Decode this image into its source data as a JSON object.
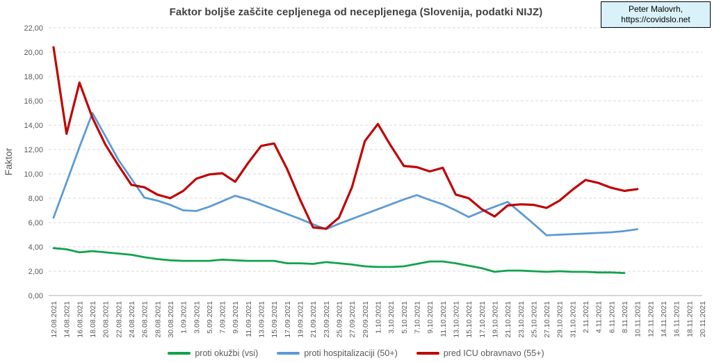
{
  "chart": {
    "title": "Faktor boljše zaščite cepljenega od necepljenega (Slovenija, podatki NIJZ)",
    "ylabel": "Faktor",
    "title_color": "#404040",
    "axis_text_color": "#595959",
    "grid_color": "#D9D9D9",
    "axis_line_color": "#BFBFBF"
  },
  "credit": {
    "line1": "Peter Malovrh,",
    "line2": "https://covidslo.net",
    "bg_color": "#D9F1F8",
    "border_color": "#000000"
  },
  "chart_data": {
    "type": "line",
    "title": "Faktor boljše zaščite cepljenega od necepljenega (Slovenija, podatki NIJZ)",
    "xlabel": "",
    "ylabel": "Faktor",
    "ylim": [
      0,
      22
    ],
    "ytick_step": 2,
    "ytick_format": "decimal-comma-2",
    "grid": "horizontal-dashed",
    "legend_position": "bottom",
    "x": [
      "12.08.2021",
      "14.08.2021",
      "16.08.2021",
      "18.08.2021",
      "20.08.2021",
      "22.08.2021",
      "24.08.2021",
      "26.08.2021",
      "28.08.2021",
      "30.08.2021",
      "1.09.2021",
      "3.09.2021",
      "5.09.2021",
      "7.09.2021",
      "9.09.2021",
      "11.09.2021",
      "13.09.2021",
      "15.09.2021",
      "17.09.2021",
      "19.09.2021",
      "21.09.2021",
      "23.09.2021",
      "25.09.2021",
      "27.09.2021",
      "29.09.2021",
      "1.10.2021",
      "3.10.2021",
      "5.10.2021",
      "7.10.2021",
      "9.10.2021",
      "11.10.2021",
      "13.10.2021",
      "15.10.2021",
      "17.10.2021",
      "19.10.2021",
      "21.10.2021",
      "23.10.2021",
      "25.10.2021",
      "27.10.2021",
      "29.10.2021",
      "31.10.2021",
      "2.11.2021",
      "4.11.2021",
      "6.11.2021",
      "8.11.2021",
      "10.11.2021",
      "12.11.2021",
      "14.11.2021",
      "16.11.2021",
      "18.11.2021",
      "20.11.2021"
    ],
    "series": [
      {
        "name": "proti okužbi (vsi)",
        "color": "#12A24B",
        "values": [
          3.9,
          3.8,
          3.55,
          3.65,
          3.55,
          3.45,
          3.35,
          3.15,
          3.0,
          2.9,
          2.85,
          2.85,
          2.85,
          2.95,
          2.9,
          2.85,
          2.85,
          2.85,
          2.65,
          2.65,
          2.6,
          2.75,
          2.65,
          2.55,
          2.4,
          2.35,
          2.35,
          2.4,
          2.6,
          2.8,
          2.8,
          2.65,
          2.45,
          2.25,
          1.95,
          2.05,
          2.05,
          2.0,
          1.95,
          2.0,
          1.95,
          1.95,
          1.9,
          1.9,
          1.85
        ]
      },
      {
        "name": "proti hospitalizaciji (50+)",
        "color": "#5B9BD5",
        "values": [
          6.4,
          9.3,
          12.2,
          15.0,
          13.1,
          11.15,
          9.6,
          8.05,
          7.8,
          7.45,
          7.0,
          6.95,
          7.3,
          7.75,
          8.2,
          7.9,
          7.5,
          7.1,
          6.7,
          6.3,
          5.85,
          5.45,
          5.9,
          6.3,
          6.7,
          7.1,
          7.5,
          7.9,
          8.25,
          7.85,
          7.5,
          7.0,
          6.45,
          6.9,
          7.3,
          7.7,
          6.8,
          5.9,
          4.95,
          5.0,
          5.05,
          5.1,
          5.15,
          5.2,
          5.3,
          5.45
        ]
      },
      {
        "name": "pred ICU obravnavo (55+)",
        "color": "#C00000",
        "values": [
          20.4,
          13.3,
          17.5,
          14.6,
          12.4,
          10.7,
          9.1,
          8.9,
          8.3,
          8.0,
          8.6,
          9.6,
          9.95,
          10.05,
          9.35,
          10.9,
          12.3,
          12.5,
          10.4,
          7.9,
          5.6,
          5.5,
          6.4,
          8.9,
          12.7,
          14.1,
          12.3,
          10.65,
          10.55,
          10.2,
          10.5,
          8.3,
          8.0,
          7.1,
          6.5,
          7.4,
          7.5,
          7.45,
          7.2,
          7.8,
          8.7,
          9.5,
          9.25,
          8.85,
          8.6,
          8.75
        ]
      }
    ]
  }
}
